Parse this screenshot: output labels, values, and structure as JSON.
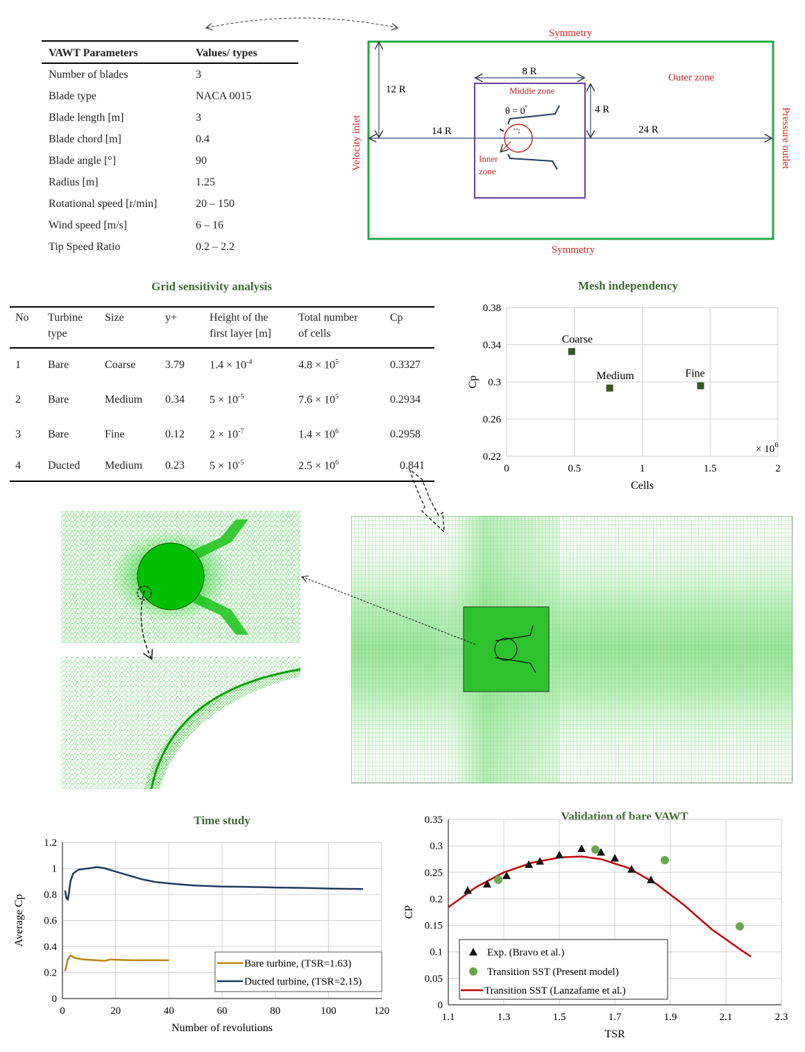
{
  "param_table": {
    "headers": [
      "VAWT Parameters",
      "Values/ types"
    ],
    "rows": [
      [
        "Number of blades",
        "3"
      ],
      [
        "Blade type",
        "NACA 0015"
      ],
      [
        "Blade length [m]",
        "3"
      ],
      [
        "Blade chord [m]",
        "0.4"
      ],
      [
        "Blade angle [°]",
        "90"
      ],
      [
        "Radius [m]",
        "1.25"
      ],
      [
        "Rotational speed [r/min]",
        "20 – 150"
      ],
      [
        "Wind speed [m/s]",
        "6 – 16"
      ],
      [
        "Tip Speed Ratio",
        "0.2 – 2.2"
      ]
    ]
  },
  "domain_diagram": {
    "top": "Symmetry",
    "bottom": "Symmetry",
    "left": "Velocity inlet",
    "right": "Pressure outlet",
    "outer": "Outer zone",
    "middle": "Middle zone",
    "inner": "Inner zone",
    "inner_line1": "Inner",
    "inner_line2": "zone",
    "theta": "θ = 0",
    "theta_deg": "°",
    "dims": {
      "width_mid": "8 R",
      "height_top": "12 R",
      "height_mid": "4 R",
      "left_len": "14 R",
      "right_len": "24 R"
    }
  },
  "grid_table": {
    "title": "Grid sensitivity analysis",
    "headers": [
      "No",
      "Turbine type",
      "Size",
      "y+",
      "Height of the first layer [m]",
      "Total number of cells",
      "Cp"
    ],
    "header_lines": {
      "turbine": [
        "Turbine",
        "type"
      ],
      "height": [
        "Height of the",
        "first layer [m]"
      ],
      "total": [
        "Total number",
        "of cells"
      ]
    },
    "rows": [
      {
        "no": "1",
        "type": "Bare",
        "size": "Coarse",
        "yplus": "3.79",
        "h_base": "1.4 × 10",
        "h_exp": "-4",
        "n_base": "4.8 × 10",
        "n_exp": "5",
        "cp": "0.3327"
      },
      {
        "no": "2",
        "type": "Bare",
        "size": "Medium",
        "yplus": "0.34",
        "h_base": "5 × 10",
        "h_exp": "-5",
        "n_base": "7.6 × 10",
        "n_exp": "5",
        "cp": "0.2934"
      },
      {
        "no": "3",
        "type": "Bare",
        "size": "Fine",
        "yplus": "0.12",
        "h_base": "2 × 10",
        "h_exp": "-7",
        "n_base": "1.4 × 10",
        "n_exp": "6",
        "cp": "0.2958"
      },
      {
        "no": "4",
        "type": "Ducted",
        "size": "Medium",
        "yplus": "0.23",
        "h_base": "5 × 10",
        "h_exp": "-5",
        "n_base": "2.5 × 10",
        "n_exp": "6",
        "cp": "0.841"
      }
    ]
  },
  "chart_data": [
    {
      "type": "scatter",
      "title": "Mesh independency",
      "xlabel": "Cells",
      "ylabel": "Cp",
      "x_multiplier": "× 10",
      "x_multiplier_exp": "6",
      "xlim": [
        0,
        2
      ],
      "ylim": [
        0.22,
        0.38
      ],
      "xticks": [
        "0",
        "0.5",
        "1",
        "1.5",
        "2"
      ],
      "yticks": [
        "0.22",
        "0.26",
        "0.3",
        "0.34",
        "0.38"
      ],
      "grid": true,
      "color": "#375623",
      "points": [
        {
          "label": "Coarse",
          "x": 0.48,
          "y": 0.3327
        },
        {
          "label": "Medium",
          "x": 0.76,
          "y": 0.2934
        },
        {
          "label": "Fine",
          "x": 1.43,
          "y": 0.2958
        }
      ]
    },
    {
      "type": "line",
      "title": "Time study",
      "xlabel": "Number of revolutions",
      "ylabel": "Average Cp",
      "xlim": [
        0,
        120
      ],
      "ylim": [
        0,
        1.2
      ],
      "xticks": [
        "0",
        "20",
        "40",
        "60",
        "80",
        "100",
        "120"
      ],
      "yticks": [
        "0",
        "0.2",
        "0.4",
        "0.6",
        "0.8",
        "1",
        "1.2"
      ],
      "grid": true,
      "legend": "bottom-right",
      "series": [
        {
          "name": "Bare turbine, (TSR=1.63)",
          "color": "#b8860b",
          "x": [
            1,
            2,
            3,
            5,
            8,
            12,
            16,
            18,
            20,
            25,
            30,
            35,
            40
          ],
          "y": [
            0.21,
            0.3,
            0.33,
            0.31,
            0.3,
            0.295,
            0.29,
            0.3,
            0.298,
            0.295,
            0.294,
            0.294,
            0.294
          ]
        },
        {
          "name": "Ducted turbine, (TSR=2.15)",
          "color": "#1f3a5f",
          "x": [
            1,
            1.5,
            2,
            2.5,
            3,
            4,
            6,
            8,
            10,
            13,
            16,
            20,
            25,
            30,
            35,
            40,
            45,
            50,
            60,
            70,
            80,
            90,
            100,
            110,
            113
          ],
          "y": [
            0.83,
            0.77,
            0.76,
            0.82,
            0.9,
            0.96,
            0.99,
            0.995,
            1.0,
            1.01,
            1.0,
            0.975,
            0.945,
            0.915,
            0.895,
            0.885,
            0.875,
            0.868,
            0.86,
            0.857,
            0.853,
            0.85,
            0.845,
            0.842,
            0.841
          ]
        }
      ]
    },
    {
      "type": "scatter",
      "title": "Validation of bare VAWT",
      "xlabel": "TSR",
      "ylabel": "CP",
      "xlim": [
        1.1,
        2.3
      ],
      "ylim": [
        0,
        0.35
      ],
      "xticks": [
        "1.1",
        "1.3",
        "1.5",
        "1.7",
        "1.9",
        "2.1",
        "2.3"
      ],
      "yticks": [
        "0",
        "0.05",
        "0.1",
        "0.15",
        "0.2",
        "0.25",
        "0.3",
        "0.35"
      ],
      "grid": true,
      "legend": "bottom-left",
      "series": [
        {
          "name": "Exp. (Bravo et al.)",
          "marker": "triangle",
          "color": "#111111",
          "x": [
            1.17,
            1.24,
            1.31,
            1.39,
            1.43,
            1.5,
            1.58,
            1.65,
            1.7,
            1.76,
            1.83
          ],
          "y": [
            0.216,
            0.228,
            0.244,
            0.265,
            0.271,
            0.283,
            0.295,
            0.288,
            0.277,
            0.256,
            0.236
          ]
        },
        {
          "name": "Transition SST  (Present model)",
          "marker": "circle",
          "color": "#6aa84f",
          "x": [
            1.28,
            1.63,
            1.88,
            2.15
          ],
          "y": [
            0.236,
            0.293,
            0.273,
            0.148
          ]
        },
        {
          "name": "Transition SST (Lanzafame et al.)",
          "marker": "line",
          "color": "#c00000",
          "x": [
            1.1,
            1.2,
            1.3,
            1.4,
            1.5,
            1.58,
            1.65,
            1.75,
            1.85,
            1.95,
            2.05,
            2.15,
            2.19
          ],
          "y": [
            0.184,
            0.222,
            0.25,
            0.268,
            0.278,
            0.28,
            0.275,
            0.258,
            0.228,
            0.188,
            0.142,
            0.105,
            0.091
          ]
        }
      ]
    }
  ]
}
